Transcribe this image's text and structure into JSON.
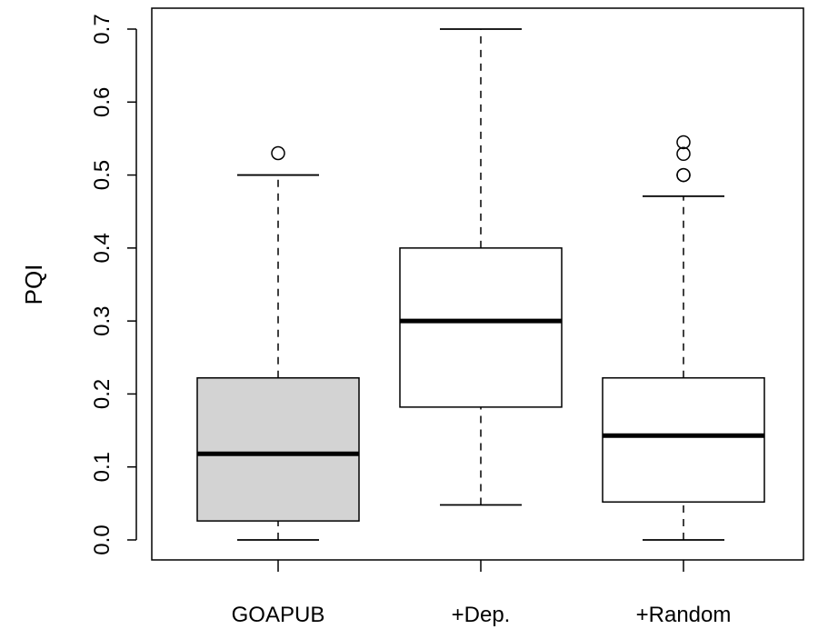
{
  "chart_data": {
    "type": "box",
    "title": "",
    "xlabel": "",
    "ylabel": "PQI",
    "ylim": [
      0.0,
      0.7
    ],
    "y_ticks": [
      "0.0",
      "0.1",
      "0.2",
      "0.3",
      "0.4",
      "0.5",
      "0.6",
      "0.7"
    ],
    "grid": false,
    "categories": [
      "GOAPUB",
      "+Dep.",
      "+Random"
    ],
    "boxes": [
      {
        "label": "GOAPUB",
        "whisker_low": 0.0,
        "q1": 0.026,
        "median": 0.118,
        "q3": 0.222,
        "whisker_high": 0.5,
        "outliers": [
          0.53
        ],
        "fill": "#d3d3d3"
      },
      {
        "label": "+Dep.",
        "whisker_low": 0.048,
        "q1": 0.182,
        "median": 0.3,
        "q3": 0.4,
        "whisker_high": 0.7,
        "outliers": [],
        "fill": "#ffffff"
      },
      {
        "label": "+Random",
        "whisker_low": 0.0,
        "q1": 0.052,
        "median": 0.143,
        "q3": 0.222,
        "whisker_high": 0.471,
        "outliers": [
          0.5,
          0.5,
          0.529,
          0.545
        ],
        "fill": "#ffffff"
      }
    ]
  }
}
